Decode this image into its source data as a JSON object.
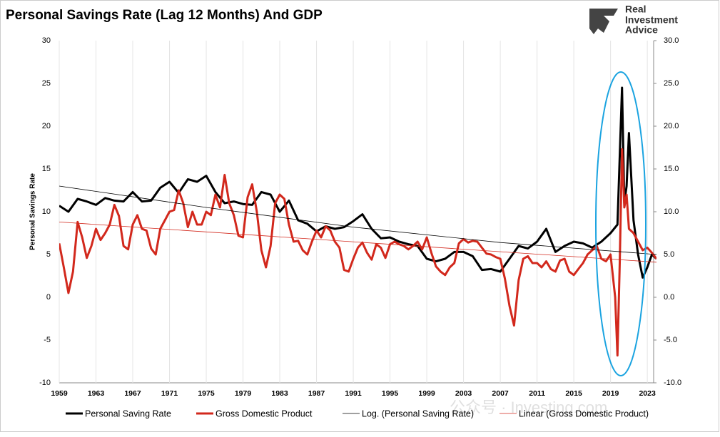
{
  "header": {
    "logo": [
      "Real",
      "Investment",
      "Advice"
    ],
    "watermark": "公众号 · Investing.com"
  },
  "chart_data": {
    "type": "line",
    "title": "Personal Savings Rate (Lag 12 Months) And GDP",
    "ylabel": "Personal Savings Rate",
    "xlim": [
      1959,
      2024
    ],
    "xticks": [
      1959,
      1963,
      1967,
      1971,
      1975,
      1979,
      1983,
      1987,
      1991,
      1995,
      1999,
      2003,
      2007,
      2011,
      2015,
      2019,
      2023
    ],
    "ylim": [
      -10,
      30
    ],
    "yticks": [
      -10,
      -5,
      0,
      5,
      10,
      15,
      20,
      25,
      30
    ],
    "y2lim": [
      -10,
      30
    ],
    "y2ticks": [
      {
        "value": -10,
        "label": "-10.0"
      },
      {
        "value": -5,
        "label": "-5.0"
      },
      {
        "value": 0,
        "label": "0.0"
      },
      {
        "value": 5,
        "label": "5.0"
      },
      {
        "value": 10,
        "label": "10.0"
      },
      {
        "value": 15,
        "label": "15.0"
      },
      {
        "value": 20,
        "label": "20.0"
      },
      {
        "value": 25,
        "label": "25.0"
      },
      {
        "value": 30,
        "label": "30.0"
      }
    ],
    "grid": true,
    "series": [
      {
        "name": "Personal Saving Rate",
        "color": "#000000",
        "width": 3,
        "x": [
          1959,
          1960,
          1961,
          1962,
          1963,
          1964,
          1965,
          1966,
          1967,
          1968,
          1969,
          1970,
          1971,
          1972,
          1973,
          1974,
          1975,
          1976,
          1977,
          1978,
          1979,
          1980,
          1981,
          1982,
          1983,
          1984,
          1985,
          1986,
          1987,
          1988,
          1989,
          1990,
          1991,
          1992,
          1993,
          1994,
          1995,
          1996,
          1997,
          1998,
          1999,
          2000,
          2001,
          2002,
          2003,
          2004,
          2005,
          2006,
          2007,
          2008,
          2009,
          2010,
          2011,
          2012,
          2013,
          2014,
          2015,
          2016,
          2017,
          2018,
          2019,
          2019.75,
          2020.25,
          2020.5,
          2020.75,
          2021,
          2021.5,
          2022,
          2022.5,
          2023,
          2023.5,
          2024
        ],
        "values": [
          10.7,
          10.0,
          11.5,
          11.2,
          10.8,
          11.6,
          11.3,
          11.2,
          12.3,
          11.2,
          11.3,
          12.8,
          13.5,
          12.2,
          13.8,
          13.5,
          14.2,
          12.3,
          11.0,
          11.2,
          10.9,
          10.8,
          12.3,
          12.0,
          10.0,
          11.3,
          9.0,
          8.6,
          7.7,
          8.3,
          8.0,
          8.2,
          8.9,
          9.7,
          8.0,
          6.9,
          7.0,
          6.5,
          6.2,
          6.0,
          4.5,
          4.2,
          4.5,
          5.3,
          5.3,
          4.8,
          3.2,
          3.3,
          3.0,
          4.5,
          6.0,
          5.7,
          6.5,
          8.0,
          5.3,
          6.0,
          6.5,
          6.3,
          5.8,
          6.5,
          7.5,
          8.5,
          24.5,
          11.0,
          13.0,
          19.2,
          9.0,
          5.0,
          2.3,
          3.5,
          5.0,
          4.5
        ]
      },
      {
        "name": "Gross Domestic Product",
        "color": "#d2281c",
        "width": 3,
        "x": [
          1959,
          1959.5,
          1960,
          1960.5,
          1961,
          1961.5,
          1962,
          1962.5,
          1963,
          1963.5,
          1964,
          1964.5,
          1965,
          1965.5,
          1966,
          1966.5,
          1967,
          1967.5,
          1968,
          1968.5,
          1969,
          1969.5,
          1970,
          1970.5,
          1971,
          1971.5,
          1972,
          1972.5,
          1973,
          1973.5,
          1974,
          1974.5,
          1975,
          1975.5,
          1976,
          1976.5,
          1977,
          1977.5,
          1978,
          1978.5,
          1979,
          1979.5,
          1980,
          1980.5,
          1981,
          1981.5,
          1982,
          1982.5,
          1983,
          1983.5,
          1984,
          1984.5,
          1985,
          1985.5,
          1986,
          1986.5,
          1987,
          1987.5,
          1988,
          1988.5,
          1989,
          1989.5,
          1990,
          1990.5,
          1991,
          1991.5,
          1992,
          1992.5,
          1993,
          1993.5,
          1994,
          1994.5,
          1995,
          1995.5,
          1996,
          1996.5,
          1997,
          1997.5,
          1998,
          1998.5,
          1999,
          1999.5,
          2000,
          2000.5,
          2001,
          2001.5,
          2002,
          2002.5,
          2003,
          2003.5,
          2004,
          2004.5,
          2005,
          2005.5,
          2006,
          2006.5,
          2007,
          2007.5,
          2008,
          2008.5,
          2009,
          2009.5,
          2010,
          2010.5,
          2011,
          2011.5,
          2012,
          2012.5,
          2013,
          2013.5,
          2014,
          2014.5,
          2015,
          2015.5,
          2016,
          2016.5,
          2017,
          2017.5,
          2018,
          2018.5,
          2019,
          2019.5,
          2019.75,
          2020,
          2020.25,
          2020.5,
          2020.75,
          2021,
          2021.5,
          2022,
          2022.5,
          2023,
          2023.5,
          2024
        ],
        "values": [
          6.3,
          3.5,
          0.5,
          3.0,
          8.8,
          7.0,
          4.6,
          6.0,
          8.0,
          6.7,
          7.5,
          8.5,
          10.8,
          9.5,
          6.0,
          5.6,
          8.5,
          9.6,
          8.0,
          7.8,
          5.7,
          5.0,
          8.0,
          9.0,
          10.0,
          10.2,
          12.5,
          11.0,
          8.2,
          10.0,
          8.5,
          8.5,
          10.0,
          9.6,
          12.0,
          10.5,
          14.3,
          11.0,
          9.6,
          7.2,
          7.0,
          11.7,
          13.2,
          10.0,
          5.5,
          3.5,
          6.0,
          11.0,
          12.0,
          11.5,
          8.5,
          6.5,
          6.6,
          5.5,
          5.0,
          6.5,
          7.8,
          7.0,
          8.3,
          7.8,
          6.5,
          5.8,
          3.2,
          3.0,
          4.5,
          5.8,
          6.4,
          5.2,
          4.4,
          6.2,
          5.8,
          4.6,
          6.2,
          6.5,
          6.2,
          6.0,
          5.6,
          6.0,
          6.5,
          5.6,
          7.0,
          5.2,
          3.6,
          3.0,
          2.6,
          3.5,
          4.0,
          6.3,
          6.8,
          6.4,
          6.6,
          6.5,
          5.8,
          5.1,
          5.0,
          4.7,
          4.5,
          2.2,
          -1.0,
          -3.3,
          2.0,
          4.5,
          4.8,
          4.0,
          4.0,
          3.5,
          4.2,
          3.3,
          3.0,
          4.3,
          4.5,
          3.0,
          2.6,
          3.3,
          4.0,
          5.0,
          5.5,
          6.0,
          4.5,
          4.2,
          5.0,
          0.0,
          -6.8,
          4.0,
          17.3,
          10.5,
          12.0,
          8.0,
          7.5,
          6.5,
          5.5,
          5.8,
          5.2,
          4.5
        ]
      },
      {
        "name": "Log. (Personal Saving Rate)",
        "color": "#000000",
        "width": 0.8,
        "x": [
          1959,
          1975,
          1991,
          2007,
          2024
        ],
        "values": [
          13.0,
          10.5,
          8.2,
          6.4,
          5.0
        ]
      },
      {
        "name": "Linear (Gross Domestic Product)",
        "color": "#d2281c",
        "width": 0.8,
        "x": [
          1959,
          2024
        ],
        "values": [
          8.8,
          4.1
        ]
      }
    ]
  }
}
